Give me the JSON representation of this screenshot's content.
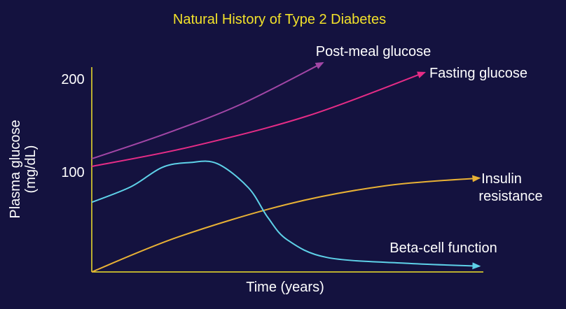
{
  "chart_data": {
    "type": "line",
    "title": "Natural History of Type 2 Diabetes",
    "xlabel": "Time (years)",
    "ylabel": [
      "Plasma glucose",
      "(mg/dL)"
    ],
    "y_ticks": [
      "200",
      "100"
    ],
    "ylim": [
      0,
      210
    ],
    "xlim": [
      0,
      10
    ],
    "grid": false,
    "series": [
      {
        "name": "Post-meal glucose",
        "color": "#a246a6",
        "arrow": true,
        "points": [
          [
            0,
            117
          ],
          [
            1.9,
            143
          ],
          [
            3.8,
            173
          ],
          [
            5.9,
            216
          ]
        ]
      },
      {
        "name": "Fasting glucose",
        "color": "#e52c86",
        "arrow": true,
        "points": [
          [
            0,
            109
          ],
          [
            2.5,
            129
          ],
          [
            5.5,
            161
          ],
          [
            8.5,
            206
          ]
        ]
      },
      {
        "name": [
          "Insulin",
          "resistance"
        ],
        "color": "#e8b135",
        "arrow": true,
        "points": [
          [
            0,
            0
          ],
          [
            2.2,
            36
          ],
          [
            5.0,
            70
          ],
          [
            7.5,
            89
          ],
          [
            9.9,
            97
          ]
        ]
      },
      {
        "name": "Beta-cell function",
        "color": "#5ed1e8",
        "arrow": true,
        "points": [
          [
            0,
            72
          ],
          [
            1.0,
            88
          ],
          [
            1.8,
            108
          ],
          [
            2.5,
            113
          ],
          [
            3.2,
            112
          ],
          [
            4.0,
            87
          ],
          [
            4.5,
            56
          ],
          [
            5.0,
            33
          ],
          [
            6.0,
            15
          ],
          [
            8.0,
            9
          ],
          [
            9.9,
            6
          ]
        ]
      }
    ]
  }
}
